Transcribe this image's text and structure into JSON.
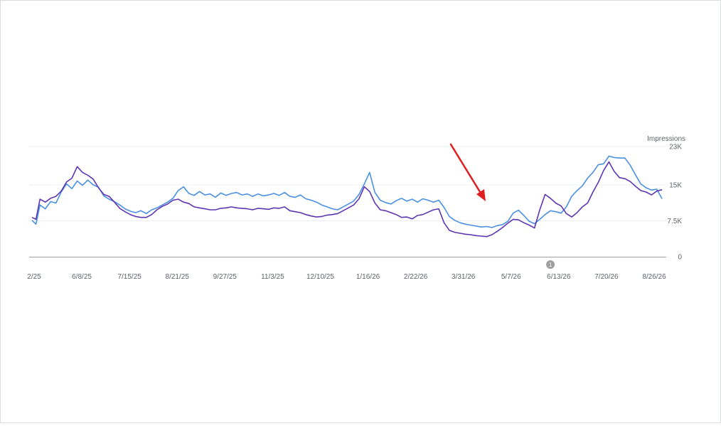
{
  "chart_data": {
    "type": "line",
    "ylabel": "Impressions",
    "ylim": [
      0,
      23000
    ],
    "y_ticks": [
      {
        "value": 0,
        "label": "0"
      },
      {
        "value": 7500,
        "label": "7.5K"
      },
      {
        "value": 15000,
        "label": "15K"
      },
      {
        "value": 23000,
        "label": "23K"
      }
    ],
    "x_ticks": [
      "2/25",
      "6/8/25",
      "7/15/25",
      "8/21/25",
      "9/27/25",
      "11/3/25",
      "12/10/25",
      "1/16/26",
      "2/22/26",
      "3/31/26",
      "5/7/26",
      "6/13/26",
      "7/20/26",
      "8/26/26"
    ],
    "x_range_days": [
      0,
      475
    ],
    "grid": true,
    "annotation": {
      "label": "1",
      "day": 390
    },
    "series": [
      {
        "color": "#4a90e2",
        "points": [
          [
            0,
            7600
          ],
          [
            3,
            6800
          ],
          [
            6,
            10800
          ],
          [
            10,
            10000
          ],
          [
            14,
            11500
          ],
          [
            18,
            11200
          ],
          [
            22,
            13500
          ],
          [
            26,
            15200
          ],
          [
            30,
            14200
          ],
          [
            34,
            15800
          ],
          [
            38,
            14900
          ],
          [
            42,
            16000
          ],
          [
            46,
            15000
          ],
          [
            50,
            14500
          ],
          [
            54,
            12700
          ],
          [
            58,
            12000
          ],
          [
            62,
            11500
          ],
          [
            66,
            10800
          ],
          [
            70,
            10000
          ],
          [
            74,
            9500
          ],
          [
            78,
            9200
          ],
          [
            82,
            9600
          ],
          [
            86,
            9000
          ],
          [
            90,
            9800
          ],
          [
            94,
            10200
          ],
          [
            98,
            10800
          ],
          [
            102,
            11400
          ],
          [
            106,
            12200
          ],
          [
            110,
            13800
          ],
          [
            114,
            14600
          ],
          [
            118,
            13200
          ],
          [
            122,
            12800
          ],
          [
            126,
            13600
          ],
          [
            130,
            12900
          ],
          [
            134,
            13100
          ],
          [
            138,
            12400
          ],
          [
            142,
            13300
          ],
          [
            146,
            12800
          ],
          [
            150,
            13200
          ],
          [
            154,
            13400
          ],
          [
            158,
            12900
          ],
          [
            162,
            13100
          ],
          [
            166,
            12600
          ],
          [
            170,
            13100
          ],
          [
            174,
            12700
          ],
          [
            178,
            12900
          ],
          [
            182,
            13200
          ],
          [
            186,
            12800
          ],
          [
            190,
            13400
          ],
          [
            194,
            12600
          ],
          [
            198,
            12400
          ],
          [
            202,
            12900
          ],
          [
            206,
            12100
          ],
          [
            210,
            11800
          ],
          [
            214,
            11400
          ],
          [
            218,
            10800
          ],
          [
            222,
            10400
          ],
          [
            226,
            10000
          ],
          [
            230,
            9800
          ],
          [
            234,
            10400
          ],
          [
            238,
            11000
          ],
          [
            242,
            11600
          ],
          [
            246,
            13000
          ],
          [
            250,
            15200
          ],
          [
            254,
            17600
          ],
          [
            258,
            13400
          ],
          [
            262,
            11800
          ],
          [
            266,
            11300
          ],
          [
            270,
            11000
          ],
          [
            274,
            11700
          ],
          [
            278,
            12200
          ],
          [
            282,
            11600
          ],
          [
            286,
            12000
          ],
          [
            290,
            11400
          ],
          [
            294,
            12100
          ],
          [
            298,
            11800
          ],
          [
            302,
            11400
          ],
          [
            306,
            11800
          ],
          [
            310,
            10300
          ],
          [
            314,
            8400
          ],
          [
            318,
            7600
          ],
          [
            322,
            7100
          ],
          [
            326,
            6800
          ],
          [
            330,
            6600
          ],
          [
            334,
            6400
          ],
          [
            338,
            6200
          ],
          [
            342,
            6300
          ],
          [
            346,
            6100
          ],
          [
            350,
            6500
          ],
          [
            354,
            6700
          ],
          [
            358,
            7400
          ],
          [
            362,
            9100
          ],
          [
            366,
            9700
          ],
          [
            370,
            8600
          ],
          [
            374,
            7400
          ],
          [
            378,
            6900
          ],
          [
            382,
            7800
          ],
          [
            386,
            8800
          ],
          [
            390,
            9600
          ],
          [
            394,
            9400
          ],
          [
            398,
            9100
          ],
          [
            402,
            10400
          ],
          [
            406,
            12600
          ],
          [
            410,
            13800
          ],
          [
            414,
            14800
          ],
          [
            418,
            16400
          ],
          [
            422,
            17600
          ],
          [
            426,
            19200
          ],
          [
            430,
            19400
          ],
          [
            434,
            21000
          ],
          [
            438,
            20700
          ],
          [
            442,
            20600
          ],
          [
            446,
            20600
          ],
          [
            450,
            19100
          ],
          [
            454,
            17100
          ],
          [
            458,
            15200
          ],
          [
            462,
            14400
          ],
          [
            466,
            13900
          ],
          [
            470,
            14100
          ],
          [
            474,
            12100
          ]
        ]
      },
      {
        "color": "#5e35b1",
        "points": [
          [
            0,
            8200
          ],
          [
            3,
            7800
          ],
          [
            6,
            12000
          ],
          [
            10,
            11400
          ],
          [
            14,
            12200
          ],
          [
            18,
            12600
          ],
          [
            22,
            13700
          ],
          [
            26,
            15600
          ],
          [
            30,
            16400
          ],
          [
            34,
            18800
          ],
          [
            38,
            17600
          ],
          [
            42,
            17000
          ],
          [
            46,
            16200
          ],
          [
            50,
            14400
          ],
          [
            54,
            13000
          ],
          [
            58,
            12600
          ],
          [
            62,
            11400
          ],
          [
            66,
            10100
          ],
          [
            70,
            9400
          ],
          [
            74,
            8800
          ],
          [
            78,
            8400
          ],
          [
            82,
            8200
          ],
          [
            86,
            8200
          ],
          [
            90,
            8800
          ],
          [
            94,
            9800
          ],
          [
            98,
            10500
          ],
          [
            102,
            11000
          ],
          [
            106,
            11800
          ],
          [
            110,
            12000
          ],
          [
            114,
            11400
          ],
          [
            118,
            11100
          ],
          [
            122,
            10400
          ],
          [
            126,
            10200
          ],
          [
            130,
            10000
          ],
          [
            134,
            9800
          ],
          [
            138,
            9800
          ],
          [
            142,
            10100
          ],
          [
            146,
            10200
          ],
          [
            150,
            10400
          ],
          [
            154,
            10200
          ],
          [
            158,
            10100
          ],
          [
            162,
            10000
          ],
          [
            166,
            9800
          ],
          [
            170,
            10100
          ],
          [
            174,
            10000
          ],
          [
            178,
            9900
          ],
          [
            182,
            10200
          ],
          [
            186,
            10100
          ],
          [
            190,
            10400
          ],
          [
            194,
            9600
          ],
          [
            198,
            9400
          ],
          [
            202,
            9200
          ],
          [
            206,
            8800
          ],
          [
            210,
            8500
          ],
          [
            214,
            8300
          ],
          [
            218,
            8400
          ],
          [
            222,
            8700
          ],
          [
            226,
            8800
          ],
          [
            230,
            9000
          ],
          [
            234,
            9600
          ],
          [
            238,
            10200
          ],
          [
            242,
            10800
          ],
          [
            246,
            12100
          ],
          [
            250,
            14600
          ],
          [
            254,
            13600
          ],
          [
            258,
            11200
          ],
          [
            262,
            9800
          ],
          [
            266,
            9600
          ],
          [
            270,
            9200
          ],
          [
            274,
            8800
          ],
          [
            278,
            8200
          ],
          [
            282,
            8300
          ],
          [
            286,
            7900
          ],
          [
            290,
            8600
          ],
          [
            294,
            8800
          ],
          [
            298,
            9300
          ],
          [
            302,
            9800
          ],
          [
            306,
            10000
          ],
          [
            310,
            7100
          ],
          [
            314,
            5500
          ],
          [
            318,
            5100
          ],
          [
            322,
            4900
          ],
          [
            326,
            4700
          ],
          [
            330,
            4600
          ],
          [
            334,
            4400
          ],
          [
            338,
            4300
          ],
          [
            342,
            4200
          ],
          [
            346,
            4600
          ],
          [
            350,
            5300
          ],
          [
            354,
            6100
          ],
          [
            358,
            7000
          ],
          [
            362,
            7800
          ],
          [
            366,
            7700
          ],
          [
            370,
            7100
          ],
          [
            374,
            6600
          ],
          [
            378,
            6000
          ],
          [
            382,
            9800
          ],
          [
            386,
            13000
          ],
          [
            390,
            12200
          ],
          [
            394,
            11200
          ],
          [
            398,
            10600
          ],
          [
            402,
            9000
          ],
          [
            406,
            8300
          ],
          [
            410,
            9200
          ],
          [
            414,
            10400
          ],
          [
            418,
            11200
          ],
          [
            422,
            13500
          ],
          [
            426,
            15500
          ],
          [
            430,
            18000
          ],
          [
            434,
            19800
          ],
          [
            438,
            17800
          ],
          [
            442,
            16500
          ],
          [
            446,
            16300
          ],
          [
            450,
            15700
          ],
          [
            454,
            14700
          ],
          [
            458,
            13800
          ],
          [
            462,
            13500
          ],
          [
            466,
            12900
          ],
          [
            470,
            13700
          ],
          [
            474,
            14000
          ]
        ]
      }
    ]
  }
}
